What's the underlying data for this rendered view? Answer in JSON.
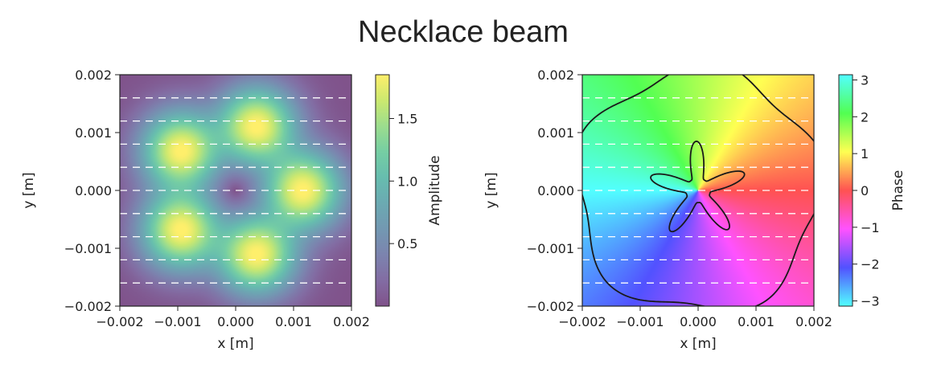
{
  "figure": {
    "title": "Necklace beam",
    "background": "#ffffff"
  },
  "chart_data": [
    {
      "type": "heatmap",
      "title": "",
      "xlabel": "x [m]",
      "ylabel": "y [m]",
      "xlim": [
        -0.002,
        0.002
      ],
      "ylim": [
        -0.002,
        0.002
      ],
      "xticks": [
        -0.002,
        -0.001,
        0.0,
        0.001,
        0.002
      ],
      "yticks": [
        -0.002,
        -0.001,
        0.0,
        0.001,
        0.002
      ],
      "xticklabels": [
        "−0.002",
        "−0.001",
        "0.000",
        "0.001",
        "0.002"
      ],
      "yticklabels": [
        "−0.002",
        "−0.001",
        "0.000",
        "0.001",
        "0.002"
      ],
      "colorbar": {
        "label": "Amplitude",
        "colormap": "viridis",
        "range": [
          0.0,
          1.85
        ],
        "ticks": [
          0.5,
          1.0,
          1.5
        ],
        "ticklabels": [
          "0.5",
          "1.0",
          "1.5"
        ]
      },
      "field": {
        "lobes": 5,
        "lobe_center_radius": 0.00117,
        "lobe_angles_deg": [
          0,
          72,
          144,
          216,
          288
        ],
        "peak_amplitude": 1.85,
        "lobe_width": 0.0005
      },
      "overlay_alpha": 0.68,
      "grid_lines": {
        "style": "dashed",
        "color": "#ffffff",
        "y": [
          -0.0016,
          -0.0012,
          -0.0008,
          -0.0004,
          0.0,
          0.0004,
          0.0008,
          0.0012,
          0.0016
        ]
      }
    },
    {
      "type": "heatmap",
      "title": "",
      "xlabel": "x [m]",
      "ylabel": "y [m]",
      "xlim": [
        -0.002,
        0.002
      ],
      "ylim": [
        -0.002,
        0.002
      ],
      "xticks": [
        -0.002,
        -0.001,
        0.0,
        0.001,
        0.002
      ],
      "yticks": [
        -0.002,
        -0.001,
        0.0,
        0.001,
        0.002
      ],
      "xticklabels": [
        "−0.002",
        "−0.001",
        "0.000",
        "0.001",
        "0.002"
      ],
      "yticklabels": [
        "−0.002",
        "−0.001",
        "0.000",
        "0.001",
        "0.002"
      ],
      "colorbar": {
        "label": "Phase",
        "colormap": "hsv",
        "range": [
          -3.14159,
          3.14159
        ],
        "ticks": [
          -3,
          -2,
          -1,
          0,
          1,
          2,
          3
        ],
        "ticklabels": [
          "−3",
          "−2",
          "−1",
          "0",
          "1",
          "2",
          "3"
        ]
      },
      "field": {
        "phase_zero_angle_deg": 0,
        "phase_direction": "counter-clockwise",
        "phase_cycles": 1
      },
      "contours": [
        {
          "shape": "star",
          "points": 5,
          "mean_radius": 0.00053,
          "modulation": 0.00032,
          "color": "#1a1a1a"
        },
        {
          "shape": "flower",
          "points": 5,
          "mean_radius": 0.0021,
          "modulation": 0.00014,
          "color": "#1a1a1a"
        }
      ],
      "overlay_alpha": 0.68,
      "grid_lines": {
        "style": "dashed",
        "color": "#ffffff",
        "y": [
          -0.0016,
          -0.0012,
          -0.0008,
          -0.0004,
          0.0,
          0.0004,
          0.0008,
          0.0012,
          0.0016
        ]
      }
    }
  ]
}
